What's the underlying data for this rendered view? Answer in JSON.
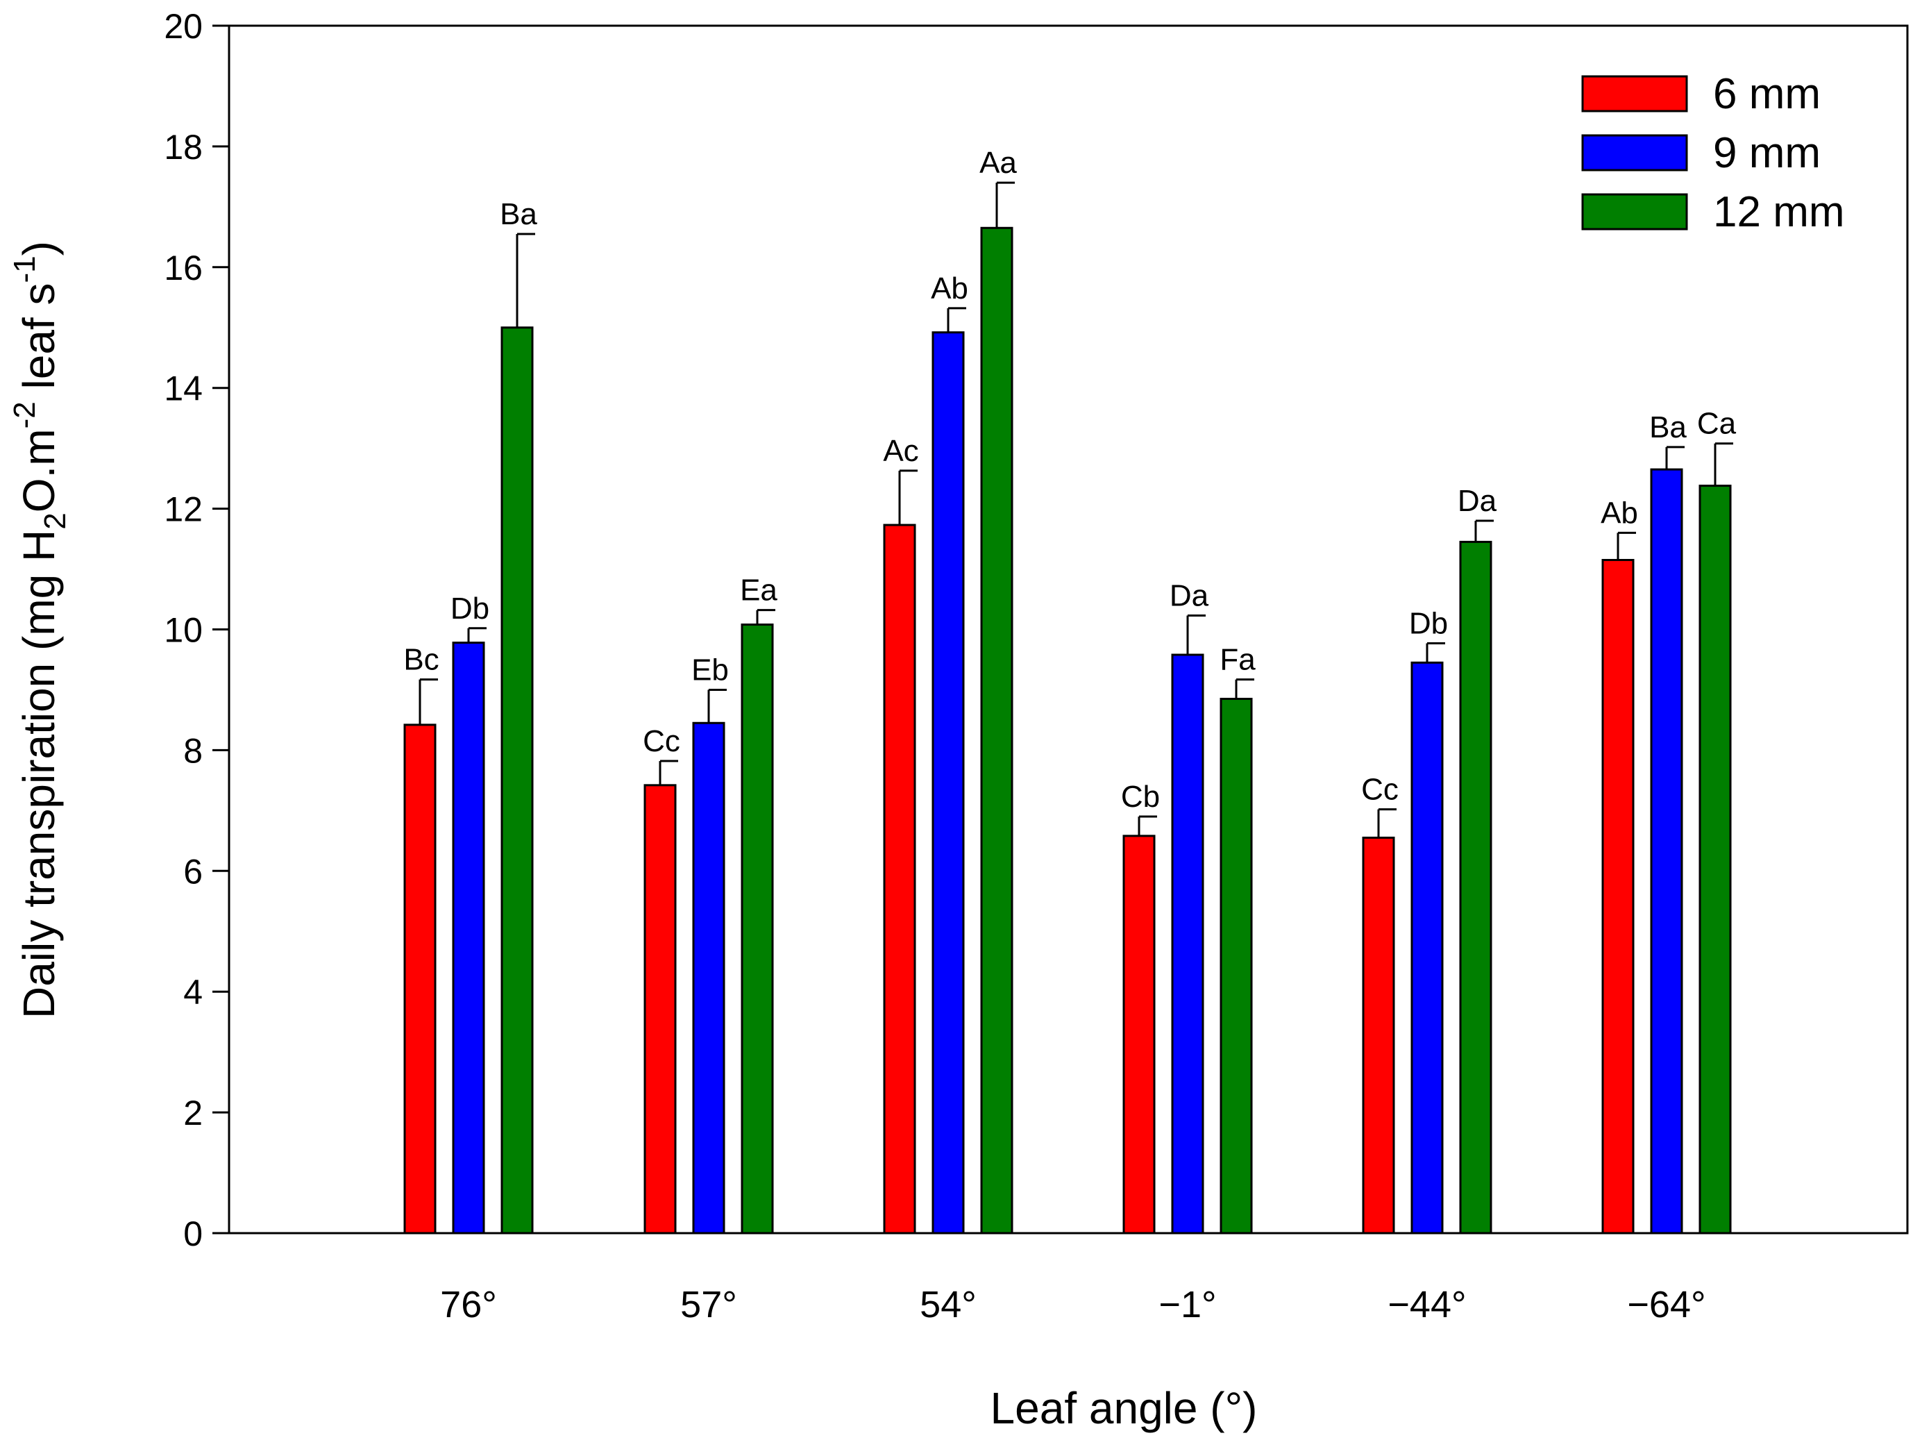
{
  "chart_data": {
    "type": "bar",
    "title": "",
    "xlabel": "Leaf angle (°)",
    "ylabel": {
      "parts": [
        {
          "t": "Daily transpiration (mg H",
          "s": ""
        },
        {
          "t": "2",
          "s": "sub"
        },
        {
          "t": "O.m",
          "s": ""
        },
        {
          "t": "-2",
          "s": "sup"
        },
        {
          "t": " leaf s",
          "s": ""
        },
        {
          "t": "-1",
          "s": "sup"
        },
        {
          "t": ")",
          "s": ""
        }
      ]
    },
    "categories": [
      "76°",
      "57°",
      "54°",
      "−1°",
      "−44°",
      "−64°"
    ],
    "ylim": [
      0,
      20
    ],
    "yticks": [
      0,
      2,
      4,
      6,
      8,
      10,
      12,
      14,
      16,
      18,
      20
    ],
    "legend_position": "top-right",
    "series": [
      {
        "name": "6 mm",
        "color": "#ff0000",
        "values": [
          8.42,
          7.42,
          11.73,
          6.58,
          6.55,
          11.15
        ],
        "errors": [
          0.75,
          0.4,
          0.9,
          0.32,
          0.47,
          0.45
        ],
        "labels": [
          "Bc",
          "Cc",
          "Ac",
          "Cb",
          "Cc",
          "Ab"
        ]
      },
      {
        "name": "9 mm",
        "color": "#0000ff",
        "values": [
          9.78,
          8.45,
          14.92,
          9.58,
          9.45,
          12.65
        ],
        "errors": [
          0.24,
          0.55,
          0.4,
          0.65,
          0.32,
          0.37
        ],
        "labels": [
          "Db",
          "Eb",
          "Ab",
          "Da",
          "Db",
          "Ba"
        ]
      },
      {
        "name": "12 mm",
        "color": "#007f00",
        "values": [
          15.0,
          10.08,
          16.65,
          8.85,
          11.45,
          12.38
        ],
        "errors": [
          1.55,
          0.24,
          0.75,
          0.32,
          0.35,
          0.7
        ],
        "labels": [
          "Ba",
          "Ea",
          "Aa",
          "Fa",
          "Da",
          "Ca"
        ]
      }
    ]
  }
}
